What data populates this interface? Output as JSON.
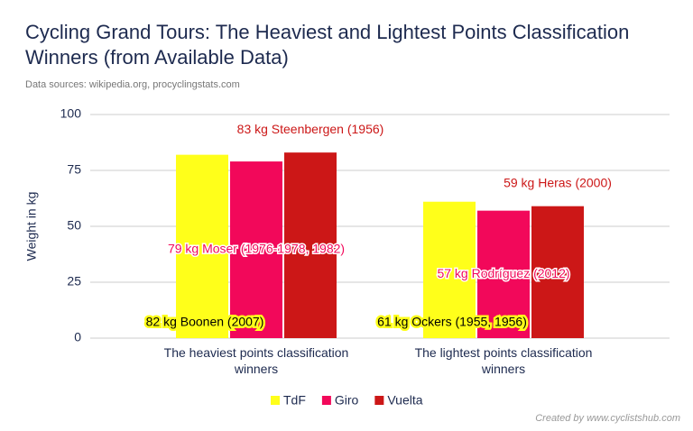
{
  "chart_data": {
    "type": "bar",
    "title": "Cycling Grand Tours: The Heaviest and Lightest Points Classification Winners (from Available Data)",
    "subtitle": "Data sources: wikipedia.org, procyclingstats.com",
    "credit": "Created by www.cyclistshub.com",
    "y_label": "Weight in kg",
    "categories": [
      [
        "The heaviest points classification",
        "winners"
      ],
      [
        "The lightest points classification",
        "winners"
      ]
    ],
    "series": [
      {
        "name": "TdF",
        "color": "#ffff1a",
        "values": [
          82,
          61
        ],
        "value_labels": [
          "82 kg Boonen (2007)",
          "61 kg Ockers (1955, 1956)"
        ]
      },
      {
        "name": "Giro",
        "color": "#f2085a",
        "values": [
          79,
          57
        ],
        "value_labels": [
          "79 kg Moser (1976-1978, 1982)",
          "57 kg Rodríguez (2012)"
        ]
      },
      {
        "name": "Vuelta",
        "color": "#cc1717",
        "values": [
          83,
          59
        ],
        "value_labels": [
          "83 kg Steenbergen (1956)",
          "59 kg Heras (2000)"
        ]
      }
    ],
    "ylim": [
      0,
      100
    ],
    "yticks": [
      0,
      25,
      50,
      75,
      100
    ],
    "grid": true
  }
}
